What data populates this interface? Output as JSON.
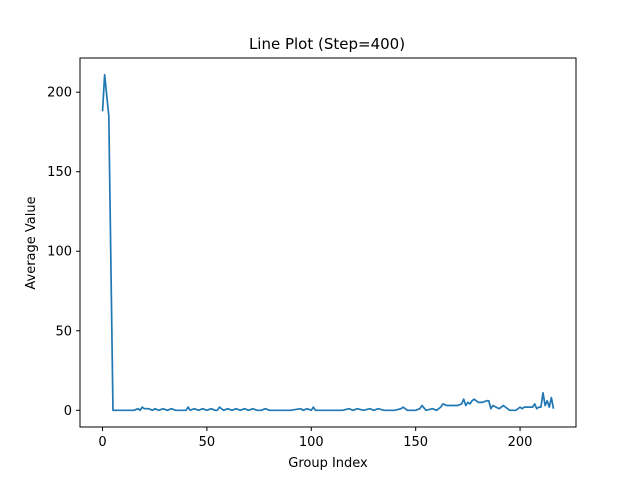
{
  "chart_data": {
    "type": "line",
    "title": "Line Plot (Step=400)",
    "xlabel": "Group Index",
    "ylabel": "Average Value",
    "xlim": [
      -10.8,
      226.8
    ],
    "ylim": [
      -10.5,
      221.5
    ],
    "xticks": [
      0,
      50,
      100,
      150,
      200
    ],
    "yticks": [
      0,
      50,
      100,
      150,
      200
    ],
    "grid": false,
    "legend": "none",
    "series": [
      {
        "color": "#1f77b4",
        "x": [
          0,
          1,
          3,
          5,
          10,
          15,
          17,
          18,
          19,
          20,
          22,
          24,
          25,
          27,
          29,
          31,
          33,
          35,
          38,
          40,
          41,
          42,
          44,
          46,
          48,
          50,
          52,
          54,
          55,
          56,
          58,
          60,
          62,
          64,
          66,
          68,
          70,
          72,
          74,
          76,
          78,
          80,
          85,
          90,
          95,
          96,
          98,
          100,
          101,
          102,
          105,
          110,
          115,
          118,
          120,
          122,
          125,
          128,
          130,
          132,
          135,
          138,
          140,
          143,
          144,
          146,
          150,
          152,
          153,
          155,
          158,
          160,
          162,
          163,
          165,
          170,
          172,
          173,
          174,
          175,
          176,
          177,
          178,
          180,
          182,
          184,
          185,
          186,
          187,
          190,
          192,
          193,
          195,
          198,
          200,
          201,
          202,
          204,
          206,
          207,
          208,
          209,
          210,
          211,
          212,
          213,
          214,
          215,
          216
        ],
        "y": [
          188,
          211,
          185,
          0,
          0,
          0,
          1,
          0,
          2,
          1,
          1,
          0,
          1,
          0,
          1,
          0,
          1,
          0,
          0,
          0,
          2,
          0,
          1,
          0,
          1,
          0,
          1,
          0,
          0,
          2,
          0,
          1,
          0,
          1,
          0,
          1,
          0,
          1,
          0,
          0,
          1,
          0,
          0,
          0,
          1,
          0,
          1,
          0,
          2,
          0,
          0,
          0,
          0,
          1,
          0,
          1,
          0,
          1,
          0,
          1,
          0,
          0,
          0,
          1,
          2,
          0,
          0,
          1,
          3,
          0,
          1,
          0,
          2,
          4,
          3,
          3,
          4,
          7,
          3,
          5,
          4,
          6,
          7,
          5,
          5,
          6,
          6,
          1,
          3,
          1,
          3,
          2,
          0,
          0,
          2,
          1,
          2,
          2,
          2,
          4,
          1,
          2,
          2,
          11,
          3,
          6,
          2,
          8,
          1
        ]
      }
    ]
  }
}
